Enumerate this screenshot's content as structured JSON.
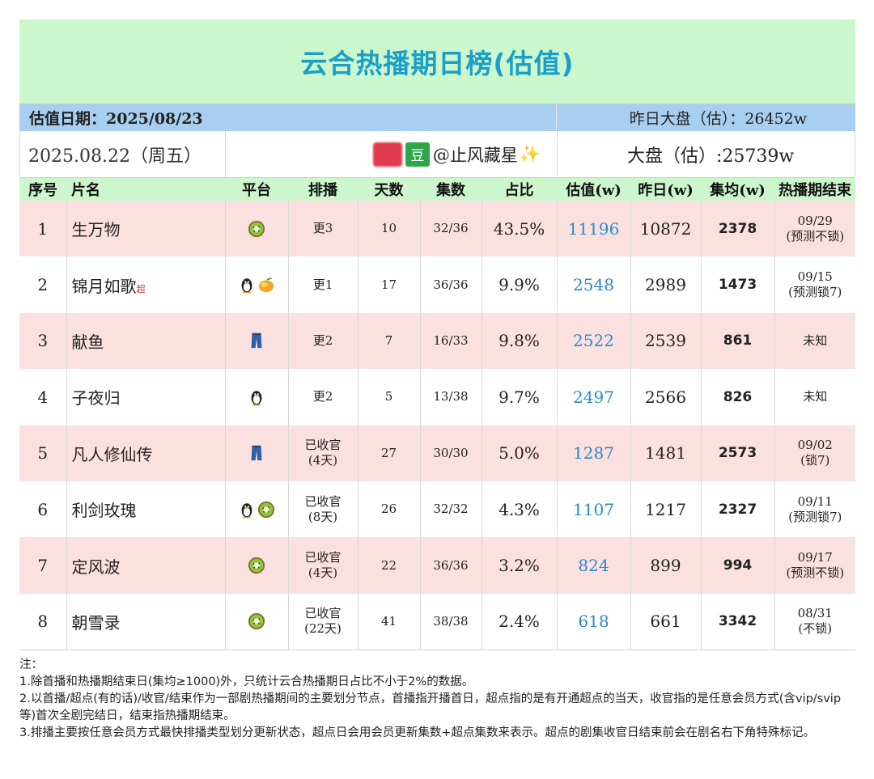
{
  "title": "云合热播期日榜(估值)",
  "date_label": "估值日期：2025/08/23",
  "yesterday_market": "昨日大盘（估）：26452w",
  "day_label": "2025.08.22（周五）",
  "author": "@止风藏星",
  "dou_label": "豆",
  "sparkle": "✨",
  "market": "大盘（估）:25739w",
  "headers": [
    "序号",
    "片名",
    "平台",
    "排播",
    "天数",
    "集数",
    "占比",
    "估值(w)",
    "昨日(w)",
    "集均(w)",
    "热播期结束"
  ],
  "rows": [
    {
      "rank": "1",
      "name": "生万物",
      "badge": "",
      "platforms": [
        "kiwi"
      ],
      "schedule": [
        "更3"
      ],
      "days": "10",
      "episodes": "32/36",
      "share": "43.5%",
      "estimate": "11196",
      "yesterday": "10872",
      "avg": "2378",
      "end": [
        "09/29",
        "(预测不锁)"
      ]
    },
    {
      "rank": "2",
      "name": "锦月如歌",
      "badge": "超",
      "platforms": [
        "penguin",
        "mango"
      ],
      "schedule": [
        "更1"
      ],
      "days": "17",
      "episodes": "36/36",
      "share": "9.9%",
      "estimate": "2548",
      "yesterday": "2989",
      "avg": "1473",
      "end": [
        "09/15",
        "(预测锁7)"
      ]
    },
    {
      "rank": "3",
      "name": "献鱼",
      "badge": "",
      "platforms": [
        "jeans"
      ],
      "schedule": [
        "更2"
      ],
      "days": "7",
      "episodes": "16/33",
      "share": "9.8%",
      "estimate": "2522",
      "yesterday": "2539",
      "avg": "861",
      "end": [
        "未知"
      ]
    },
    {
      "rank": "4",
      "name": "子夜归",
      "badge": "",
      "platforms": [
        "penguin"
      ],
      "schedule": [
        "更2"
      ],
      "days": "5",
      "episodes": "13/38",
      "share": "9.7%",
      "estimate": "2497",
      "yesterday": "2566",
      "avg": "826",
      "end": [
        "未知"
      ]
    },
    {
      "rank": "5",
      "name": "凡人修仙传",
      "badge": "",
      "platforms": [
        "jeans"
      ],
      "schedule": [
        "已收官",
        "(4天)"
      ],
      "days": "27",
      "episodes": "30/30",
      "share": "5.0%",
      "estimate": "1287",
      "yesterday": "1481",
      "avg": "2573",
      "end": [
        "09/02",
        "(锁7)"
      ]
    },
    {
      "rank": "6",
      "name": "利剑玫瑰",
      "badge": "",
      "platforms": [
        "penguin",
        "kiwi"
      ],
      "schedule": [
        "已收官",
        "(8天)"
      ],
      "days": "26",
      "episodes": "32/32",
      "share": "4.3%",
      "estimate": "1107",
      "yesterday": "1217",
      "avg": "2327",
      "end": [
        "09/11",
        "(预测锁7)"
      ]
    },
    {
      "rank": "7",
      "name": "定风波",
      "badge": "",
      "platforms": [
        "kiwi"
      ],
      "schedule": [
        "已收官",
        "(4天)"
      ],
      "days": "22",
      "episodes": "36/36",
      "share": "3.2%",
      "estimate": "824",
      "yesterday": "899",
      "avg": "994",
      "end": [
        "09/17",
        "(预测不锁)"
      ]
    },
    {
      "rank": "8",
      "name": "朝雪录",
      "badge": "",
      "platforms": [
        "kiwi"
      ],
      "schedule": [
        "已收官",
        "(22天)"
      ],
      "days": "41",
      "episodes": "38/38",
      "share": "2.4%",
      "estimate": "618",
      "yesterday": "661",
      "avg": "3342",
      "end": [
        "08/31",
        "(不锁)"
      ]
    }
  ],
  "notes": [
    "注：",
    "1.除首播和热播期结束日(集均≥1000)外，只统计云合热播期日占比不小于2%的数据。",
    "2.以首播/超点(有的话)/收官/结束作为一部剧热播期间的主要划分节点，首播指开播首日，超点指的是有开通超点的当天，收官指的是任意会员方式(含vip/svip等)首次全剧完结日，结束指热播期结束。",
    "3.排播主要按任意会员方式最快排播类型划分更新状态，超点日会用会员更新集数+超点集数来表示。超点的剧集收官日结束前会在剧名右下角特殊标记。"
  ]
}
